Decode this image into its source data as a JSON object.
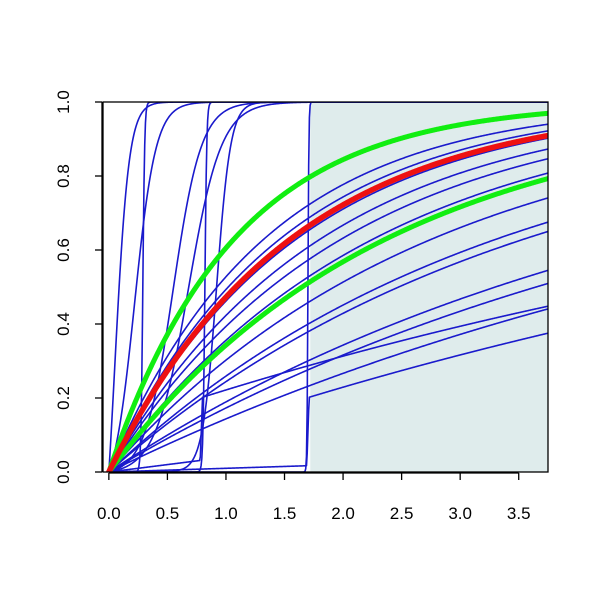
{
  "chart_data": {
    "type": "line",
    "title": "",
    "xlabel": "",
    "ylabel": "",
    "xlim": [
      -0.05,
      3.75
    ],
    "ylim": [
      0,
      1
    ],
    "x_ticks": [
      "0.0",
      "0.5",
      "1.0",
      "1.5",
      "2.0",
      "2.5",
      "3.0",
      "3.5"
    ],
    "y_ticks": [
      "0.0",
      "0.2",
      "0.4",
      "0.6",
      "0.8",
      "1.0"
    ],
    "grid": false,
    "legend": "none",
    "shaded_region": {
      "x_from": 1.72,
      "x_to": 3.75,
      "color": "#dfecec"
    },
    "colors": {
      "thin_curves": "#1a1acc",
      "center_curve": "#ee1111",
      "band_curves": "#11ee11"
    },
    "series": [
      {
        "role": "thin",
        "kind": "sigmoid",
        "x0": 0.05,
        "s": 0.06
      },
      {
        "role": "thin",
        "kind": "sigmoid",
        "x0": 0.22,
        "s": 0.09
      },
      {
        "role": "thin",
        "kind": "sigmoid",
        "x0": 0.29,
        "s": 0.008
      },
      {
        "role": "thin",
        "kind": "sigmoid",
        "x0": 0.55,
        "s": 0.12
      },
      {
        "role": "thin",
        "kind": "sigmoid",
        "x0": 0.68,
        "s": 0.14
      },
      {
        "role": "thin",
        "kind": "sigmoid",
        "x0": 0.82,
        "s": 0.008
      },
      {
        "role": "thin",
        "kind": "sigmoid",
        "x0": 0.92,
        "s": 0.06
      },
      {
        "role": "thin",
        "kind": "sigmoid",
        "x0": 1.7,
        "s": 0.004
      },
      {
        "role": "thin",
        "kind": "sat",
        "k": 0.75
      },
      {
        "role": "thin",
        "kind": "sat",
        "k": 0.68
      },
      {
        "role": "thin",
        "kind": "sat",
        "k": 0.62
      },
      {
        "role": "thin",
        "kind": "sat",
        "k": 0.55
      },
      {
        "role": "thin",
        "kind": "sat",
        "k": 0.5
      },
      {
        "role": "thin",
        "kind": "sat",
        "k": 0.44
      },
      {
        "role": "thin",
        "kind": "sat",
        "k": 0.36
      },
      {
        "role": "thin",
        "kind": "sat",
        "k": 0.3
      },
      {
        "role": "thin",
        "kind": "sat",
        "k": 0.28
      },
      {
        "role": "thin",
        "kind": "sat",
        "k": 0.21
      },
      {
        "role": "thin",
        "kind": "sat",
        "k": 0.19
      },
      {
        "role": "thin",
        "kind": "sat",
        "k": 0.155
      },
      {
        "role": "thin",
        "kind": "jump",
        "x0": 0.78,
        "a": 0.04,
        "b": 0.125
      },
      {
        "role": "thin",
        "kind": "jump",
        "x0": 1.69,
        "a": 0.01,
        "b": 0.12
      },
      {
        "role": "band",
        "kind": "sat",
        "k": 0.93
      },
      {
        "role": "band",
        "kind": "sat",
        "k": 0.42
      },
      {
        "role": "center",
        "kind": "sat",
        "k": 0.64
      }
    ]
  }
}
